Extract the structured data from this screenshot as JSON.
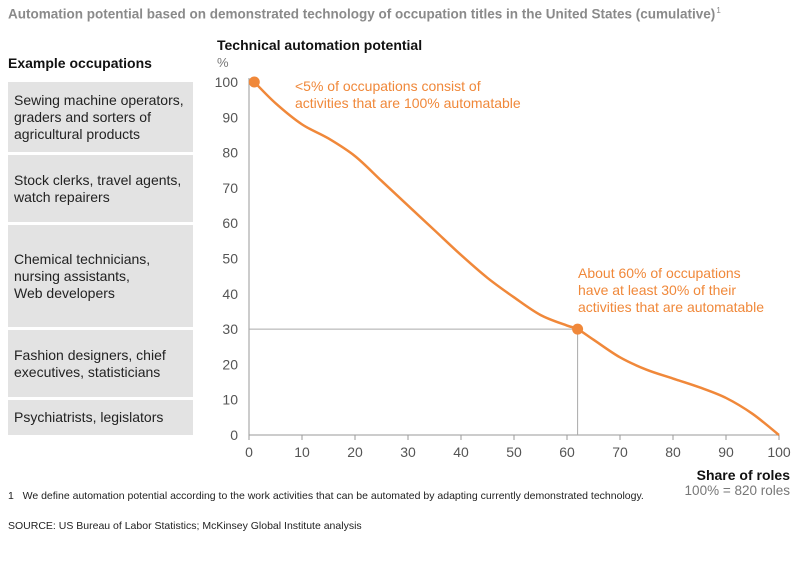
{
  "title": "Automation potential based on demonstrated technology of occupation titles in the United States (cumulative)",
  "title_footnote_marker": "1",
  "occupations": {
    "header": "Example occupations",
    "items": [
      "Sewing machine operators,\ngraders and sorters of\nagricultural products",
      "Stock clerks, travel agents,\nwatch repairers",
      "Chemical technicians,\nnursing assistants,\nWeb developers",
      "Fashion designers, chief\nexecutives, statisticians",
      "Psychiatrists, legislators"
    ]
  },
  "footnote": {
    "marker": "1",
    "text": "We define automation potential according to the work activities that can be automated by adapting currently demonstrated technology."
  },
  "source": "SOURCE: US Bureau of Labor Statistics; McKinsey Global Institute analysis",
  "colors": {
    "accent": "#f0883a",
    "box": "#e3e3e3",
    "axis": "#9a9a9a",
    "title": "#8a8a8a"
  },
  "chart_data": {
    "type": "line",
    "title": "Technical automation potential",
    "y_unit": "%",
    "xlabel": "Share of roles",
    "xlabel_note": "100% = 820 roles",
    "xlim": [
      0,
      100
    ],
    "ylim": [
      0,
      100
    ],
    "xticks": [
      0,
      10,
      20,
      30,
      40,
      50,
      60,
      70,
      80,
      90,
      100
    ],
    "yticks": [
      0,
      10,
      20,
      30,
      40,
      50,
      60,
      70,
      80,
      90,
      100
    ],
    "grid": false,
    "series": [
      {
        "x": [
          1,
          5,
          10,
          15,
          20,
          25,
          30,
          35,
          40,
          45,
          50,
          55,
          60,
          62,
          65,
          70,
          75,
          80,
          85,
          90,
          95,
          100
        ],
        "y": [
          100,
          94,
          88,
          84,
          79,
          72,
          65,
          58,
          51,
          44.5,
          39,
          34,
          31,
          30,
          27,
          22,
          18.5,
          16,
          13.5,
          10.5,
          6,
          0
        ]
      }
    ],
    "highlights": [
      {
        "x": 1,
        "y": 100
      },
      {
        "x": 62,
        "y": 30
      }
    ],
    "annotations": [
      {
        "text": "<5% of occupations consist of\nactivities that are 100% automatable",
        "x": 1,
        "y": 100
      },
      {
        "text": "About 60% of occupations\nhave at least 30% of their\nactivities that are automatable",
        "x": 62,
        "y": 30
      }
    ]
  }
}
